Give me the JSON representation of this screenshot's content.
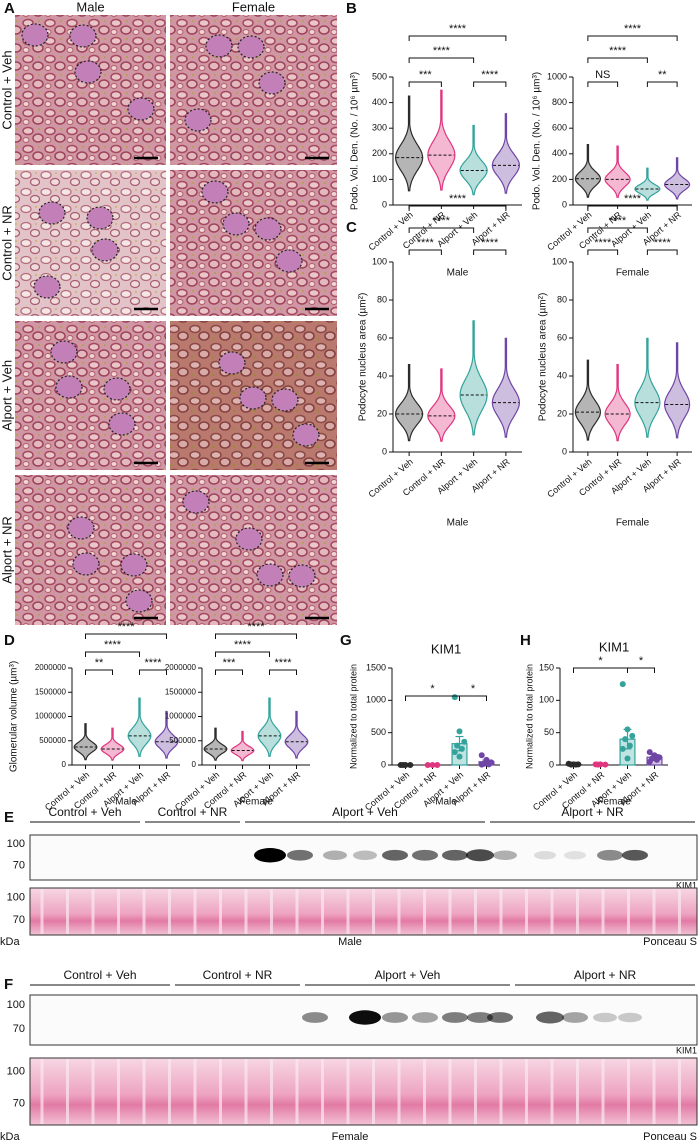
{
  "panel_labels": [
    "A",
    "B",
    "C",
    "D",
    "E",
    "F",
    "G",
    "H"
  ],
  "panel_a": {
    "columns": [
      "Male",
      "Female"
    ],
    "rows": [
      "Control + Veh",
      "Control + NR",
      "Alport + Veh",
      "Alport + NR"
    ]
  },
  "chart_data": [
    {
      "type": "violin",
      "ylabel": "Podo. Vol. Den. (No. / 10⁶ µm³)",
      "xlabel": "Male",
      "categories": [
        "Control + Veh",
        "Control + NR",
        "Alport + Veh",
        "Alport + NR"
      ],
      "colors": [
        "#2b2b2b",
        "#e0357f",
        "#33a39c",
        "#6f45a5"
      ],
      "values": [
        185,
        195,
        135,
        155
      ],
      "ylim": [
        0,
        500
      ],
      "yticks": [
        0,
        100,
        200,
        300,
        400,
        500
      ],
      "significance": [
        {
          "between": [
            "Control + Veh",
            "Control + NR"
          ],
          "label": "***"
        },
        {
          "between": [
            "Alport + Veh",
            "Alport + NR"
          ],
          "label": "****"
        },
        {
          "between": [
            "Control + Veh",
            "Alport + Veh"
          ],
          "label": "****"
        },
        {
          "between": [
            "Control + Veh",
            "Alport + NR"
          ],
          "label": "****"
        }
      ]
    },
    {
      "type": "violin",
      "ylabel": "Podo. Vol. Den. (No. / 10⁶ µm³)",
      "xlabel": "Female",
      "categories": [
        "Control + Veh",
        "Control + NR",
        "Alport + Veh",
        "Alport + NR"
      ],
      "colors": [
        "#2b2b2b",
        "#e0357f",
        "#33a39c",
        "#6f45a5"
      ],
      "values": [
        205,
        200,
        125,
        160
      ],
      "ylim": [
        0,
        1000
      ],
      "yticks": [
        0,
        200,
        400,
        600,
        800,
        1000
      ],
      "significance": [
        {
          "between": [
            "Control + Veh",
            "Control + NR"
          ],
          "label": "NS"
        },
        {
          "between": [
            "Alport + Veh",
            "Alport + NR"
          ],
          "label": "**"
        },
        {
          "between": [
            "Control + Veh",
            "Alport + Veh"
          ],
          "label": "****"
        },
        {
          "between": [
            "Control + Veh",
            "Alport + NR"
          ],
          "label": "****"
        }
      ]
    },
    {
      "type": "violin",
      "ylabel": "Podocyte nucleus area (µm²)",
      "xlabel": "Male",
      "categories": [
        "Control + Veh",
        "Control + NR",
        "Alport + Veh",
        "Alport + NR"
      ],
      "colors": [
        "#2b2b2b",
        "#e0357f",
        "#33a39c",
        "#6f45a5"
      ],
      "values": [
        20,
        19,
        30,
        26
      ],
      "ylim": [
        0,
        100
      ],
      "yticks": [
        0,
        20,
        40,
        60,
        80,
        100
      ],
      "significance": [
        {
          "between": [
            "Control + Veh",
            "Control + NR"
          ],
          "label": "****"
        },
        {
          "between": [
            "Alport + Veh",
            "Alport + NR"
          ],
          "label": "****"
        },
        {
          "between": [
            "Control + Veh",
            "Alport + Veh"
          ],
          "label": "****"
        },
        {
          "between": [
            "Control + Veh",
            "Alport + NR"
          ],
          "label": "****"
        }
      ]
    },
    {
      "type": "violin",
      "ylabel": "Podocyte nucleus area (µm²)",
      "xlabel": "Female",
      "categories": [
        "Control + Veh",
        "Control + NR",
        "Alport + Veh",
        "Alport + NR"
      ],
      "colors": [
        "#2b2b2b",
        "#e0357f",
        "#33a39c",
        "#6f45a5"
      ],
      "values": [
        21,
        20,
        26,
        25
      ],
      "ylim": [
        0,
        100
      ],
      "yticks": [
        0,
        20,
        40,
        60,
        80,
        100
      ],
      "significance": [
        {
          "between": [
            "Control + Veh",
            "Control + NR"
          ],
          "label": "****"
        },
        {
          "between": [
            "Alport + Veh",
            "Alport + NR"
          ],
          "label": "****"
        },
        {
          "between": [
            "Control + Veh",
            "Alport + Veh"
          ],
          "label": "****"
        },
        {
          "between": [
            "Control + Veh",
            "Alport + NR"
          ],
          "label": "****"
        }
      ]
    },
    {
      "type": "violin",
      "ylabel": "Glomerular volume (µm³)",
      "xlabel": "Male",
      "categories": [
        "Control + Veh",
        "Control + NR",
        "Alport + Veh",
        "Alport + NR"
      ],
      "colors": [
        "#2b2b2b",
        "#e0357f",
        "#33a39c",
        "#6f45a5"
      ],
      "values": [
        370000,
        330000,
        600000,
        480000
      ],
      "ylim": [
        0,
        2000000
      ],
      "yticks": [
        0,
        500000,
        1000000,
        1500000,
        2000000
      ],
      "significance": [
        {
          "between": [
            "Control + Veh",
            "Control + NR"
          ],
          "label": "**"
        },
        {
          "between": [
            "Alport + Veh",
            "Alport + NR"
          ],
          "label": "****"
        },
        {
          "between": [
            "Control + Veh",
            "Alport + Veh"
          ],
          "label": "****"
        },
        {
          "between": [
            "Control + Veh",
            "Alport + NR"
          ],
          "label": "****"
        }
      ]
    },
    {
      "type": "violin",
      "xlabel": "Female",
      "categories": [
        "Control + Veh",
        "Control + NR",
        "Alport + Veh",
        "Alport + NR"
      ],
      "colors": [
        "#2b2b2b",
        "#e0357f",
        "#33a39c",
        "#6f45a5"
      ],
      "values": [
        330000,
        300000,
        600000,
        480000
      ],
      "ylim": [
        0,
        2000000
      ],
      "yticks": [
        0,
        500000,
        1000000,
        1500000,
        2000000
      ],
      "significance": [
        {
          "between": [
            "Control + Veh",
            "Control + NR"
          ],
          "label": "***"
        },
        {
          "between": [
            "Alport + Veh",
            "Alport + NR"
          ],
          "label": "****"
        },
        {
          "between": [
            "Control + Veh",
            "Alport + Veh"
          ],
          "label": "****"
        },
        {
          "between": [
            "Control + Veh",
            "Alport + NR"
          ],
          "label": "****"
        }
      ]
    },
    {
      "type": "bar",
      "title": "KIM1",
      "ylabel": "Normalized to total protein",
      "xlabel": "Male",
      "categories": [
        "Control + Veh",
        "Control + NR",
        "Alport + Veh",
        "Alport + NR"
      ],
      "colors": [
        "#2b2b2b",
        "#e0357f",
        "#33a39c",
        "#6f45a5"
      ],
      "values": [
        2,
        3,
        330,
        50
      ],
      "errors": [
        1,
        1,
        110,
        25
      ],
      "points": [
        [
          0,
          0,
          0,
          0
        ],
        [
          0,
          0,
          0
        ],
        [
          1050,
          520,
          360,
          300,
          250,
          200,
          130
        ],
        [
          150,
          80,
          40,
          20,
          10,
          5
        ]
      ],
      "ylim": [
        0,
        1500
      ],
      "yticks": [
        0,
        500,
        1000,
        1500
      ],
      "significance": [
        {
          "between": [
            "Control + Veh",
            "Alport + Veh"
          ],
          "label": "*"
        },
        {
          "between": [
            "Alport + Veh",
            "Alport + NR"
          ],
          "label": "*"
        }
      ]
    },
    {
      "type": "bar",
      "title": "KIM1",
      "ylabel": "Normalized to total protein",
      "xlabel": "Female",
      "categories": [
        "Control + Veh",
        "Control + NR",
        "Alport + Veh",
        "Alport + NR"
      ],
      "colors": [
        "#2b2b2b",
        "#e0357f",
        "#33a39c",
        "#6f45a5"
      ],
      "values": [
        1,
        1,
        40,
        12
      ],
      "errors": [
        0.5,
        0.5,
        15,
        4
      ],
      "points": [
        [
          2,
          1,
          1,
          0.5,
          0.5
        ],
        [
          1,
          1,
          0.5,
          0.5
        ],
        [
          125,
          55,
          45,
          40,
          30,
          25,
          10
        ],
        [
          20,
          15,
          12,
          10,
          8,
          5
        ]
      ],
      "ylim": [
        0,
        150
      ],
      "yticks": [
        0,
        50,
        100,
        150
      ],
      "significance": [
        {
          "between": [
            "Control + Veh",
            "Alport + Veh"
          ],
          "label": "*"
        },
        {
          "between": [
            "Alport + Veh",
            "Alport + NR"
          ],
          "label": "*"
        }
      ]
    }
  ],
  "blots": [
    {
      "groups": [
        "Control + Veh",
        "Control + NR",
        "Alport + Veh",
        "Alport + NR"
      ],
      "markers": [
        100,
        70
      ],
      "unit": "kDa",
      "target": "KIM1",
      "stain": "Ponceau S",
      "sex": "Male"
    },
    {
      "groups": [
        "Control + Veh",
        "Control + NR",
        "Alport + Veh",
        "Alport + NR"
      ],
      "markers": [
        100,
        70
      ],
      "unit": "kDa",
      "target": "KIM1",
      "stain": "Ponceau S",
      "sex": "Female"
    }
  ]
}
